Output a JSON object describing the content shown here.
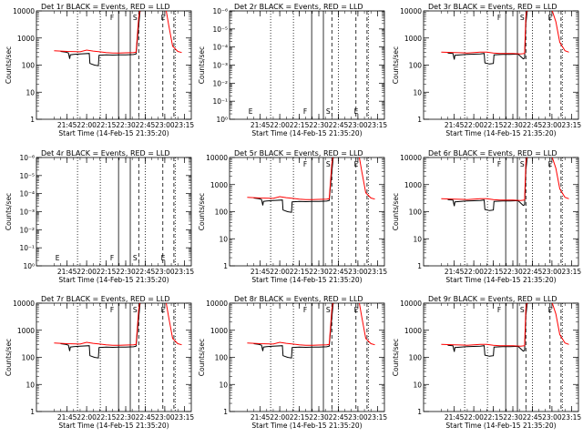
{
  "chart_data": [
    {
      "type": "line",
      "title": "Det 1r BLACK = Events, RED = LLD",
      "xlabel": "Start Time (14-Feb-15 21:35:20)",
      "ylabel": "Counts/sec",
      "y_scale": "log",
      "ylim": [
        1,
        10000
      ],
      "y_ticks": [
        "1",
        "10",
        "100",
        "1000",
        "10000"
      ],
      "x_ticks": [
        "21:45",
        "22:00",
        "22:15",
        "22:30",
        "22:45",
        "23:00",
        "23:15"
      ],
      "markers": [
        "",
        "F",
        "S",
        "E"
      ],
      "profile": "a",
      "series": [
        {
          "name": "BLACK",
          "color": "#000000"
        },
        {
          "name": "RED",
          "color": "#ff0000"
        }
      ]
    },
    {
      "type": "line",
      "title": "Det 2r BLACK = Events, RED = LLD",
      "xlabel": "Start Time (14-Feb-15 21:35:20)",
      "ylabel": "Counts/sec",
      "y_scale": "log",
      "ylim": [
        1,
        1e-06
      ],
      "y_ticks": [
        "10⁰",
        "10⁻¹",
        "10⁻²",
        "10⁻³",
        "10⁻⁴",
        "10⁻⁵",
        "10⁻⁶"
      ],
      "x_ticks": [
        "21:45",
        "22:00",
        "22:15",
        "22:30",
        "22:45",
        "23:00",
        "23:15"
      ],
      "markers": [
        "E",
        "F",
        "S",
        "E"
      ],
      "profile": "empty",
      "series": []
    },
    {
      "type": "line",
      "title": "Det 3r BLACK = Events, RED = LLD",
      "xlabel": "Start Time (14-Feb-15 21:35:20)",
      "ylabel": "Counts/sec",
      "y_scale": "log",
      "ylim": [
        1,
        10000
      ],
      "y_ticks": [
        "1",
        "10",
        "100",
        "1000",
        "10000"
      ],
      "x_ticks": [
        "21:45",
        "22:00",
        "22:15",
        "22:30",
        "22:45",
        "23:00",
        "23:15"
      ],
      "markers": [
        "",
        "F",
        "S",
        "E"
      ],
      "profile": "b",
      "series": [
        {
          "name": "BLACK",
          "color": "#000000"
        },
        {
          "name": "RED",
          "color": "#ff0000"
        }
      ]
    },
    {
      "type": "line",
      "title": "Det 4r BLACK = Events, RED = LLD",
      "xlabel": "Start Time (14-Feb-15 21:35:20)",
      "ylabel": "Counts/sec",
      "y_scale": "log",
      "ylim": [
        1,
        1e-06
      ],
      "y_ticks": [
        "10⁰",
        "10⁻¹",
        "10⁻²",
        "10⁻³",
        "10⁻⁴",
        "10⁻⁵",
        "10⁻⁶"
      ],
      "x_ticks": [
        "21:45",
        "22:00",
        "22:15",
        "22:30",
        "22:45",
        "23:00",
        "23:15"
      ],
      "markers": [
        "E",
        "F",
        "S",
        "E"
      ],
      "profile": "empty",
      "series": []
    },
    {
      "type": "line",
      "title": "Det 5r BLACK = Events, RED = LLD",
      "xlabel": "Start Time (14-Feb-15 21:35:20)",
      "ylabel": "Counts/sec",
      "y_scale": "log",
      "ylim": [
        1,
        10000
      ],
      "y_ticks": [
        "1",
        "10",
        "100",
        "1000",
        "10000"
      ],
      "x_ticks": [
        "21:45",
        "22:00",
        "22:15",
        "22:30",
        "22:45",
        "23:00",
        "23:15"
      ],
      "markers": [
        "",
        "F",
        "S",
        "E"
      ],
      "profile": "a",
      "series": [
        {
          "name": "BLACK",
          "color": "#000000"
        },
        {
          "name": "RED",
          "color": "#ff0000"
        }
      ]
    },
    {
      "type": "line",
      "title": "Det 6r BLACK = Events, RED = LLD",
      "xlabel": "Start Time (14-Feb-15 21:35:20)",
      "ylabel": "Counts/sec",
      "y_scale": "log",
      "ylim": [
        1,
        10000
      ],
      "y_ticks": [
        "1",
        "10",
        "100",
        "1000",
        "10000"
      ],
      "x_ticks": [
        "21:45",
        "22:00",
        "22:15",
        "22:30",
        "22:45",
        "23:00",
        "23:15"
      ],
      "markers": [
        "",
        "F",
        "S",
        "E"
      ],
      "profile": "b",
      "series": [
        {
          "name": "BLACK",
          "color": "#000000"
        },
        {
          "name": "RED",
          "color": "#ff0000"
        }
      ]
    },
    {
      "type": "line",
      "title": "Det 7r BLACK = Events, RED = LLD",
      "xlabel": "Start Time (14-Feb-15 21:35:20)",
      "ylabel": "Counts/sec",
      "y_scale": "log",
      "ylim": [
        1,
        10000
      ],
      "y_ticks": [
        "1",
        "10",
        "100",
        "1000",
        "10000"
      ],
      "x_ticks": [
        "21:45",
        "22:00",
        "22:15",
        "22:30",
        "22:45",
        "23:00",
        "23:15"
      ],
      "markers": [
        "",
        "F",
        "S",
        "E"
      ],
      "profile": "a",
      "series": [
        {
          "name": "BLACK",
          "color": "#000000"
        },
        {
          "name": "RED",
          "color": "#ff0000"
        }
      ]
    },
    {
      "type": "line",
      "title": "Det 8r BLACK = Events, RED = LLD",
      "xlabel": "Start Time (14-Feb-15 21:35:20)",
      "ylabel": "Counts/sec",
      "y_scale": "log",
      "ylim": [
        1,
        10000
      ],
      "y_ticks": [
        "1",
        "10",
        "100",
        "1000",
        "10000"
      ],
      "x_ticks": [
        "21:45",
        "22:00",
        "22:15",
        "22:30",
        "22:45",
        "23:00",
        "23:15"
      ],
      "markers": [
        "",
        "F",
        "S",
        "E"
      ],
      "profile": "a",
      "series": [
        {
          "name": "BLACK",
          "color": "#000000"
        },
        {
          "name": "RED",
          "color": "#ff0000"
        }
      ]
    },
    {
      "type": "line",
      "title": "Det 9r BLACK = Events, RED = LLD",
      "xlabel": "Start Time (14-Feb-15 21:35:20)",
      "ylabel": "Counts/sec",
      "y_scale": "log",
      "ylim": [
        1,
        10000
      ],
      "y_ticks": [
        "1",
        "10",
        "100",
        "1000",
        "10000"
      ],
      "x_ticks": [
        "21:45",
        "22:00",
        "22:15",
        "22:30",
        "22:45",
        "23:00",
        "23:15"
      ],
      "markers": [
        "",
        "F",
        "S",
        "E"
      ],
      "profile": "b",
      "series": [
        {
          "name": "BLACK",
          "color": "#000000"
        },
        {
          "name": "RED",
          "color": "#ff0000"
        }
      ]
    }
  ]
}
